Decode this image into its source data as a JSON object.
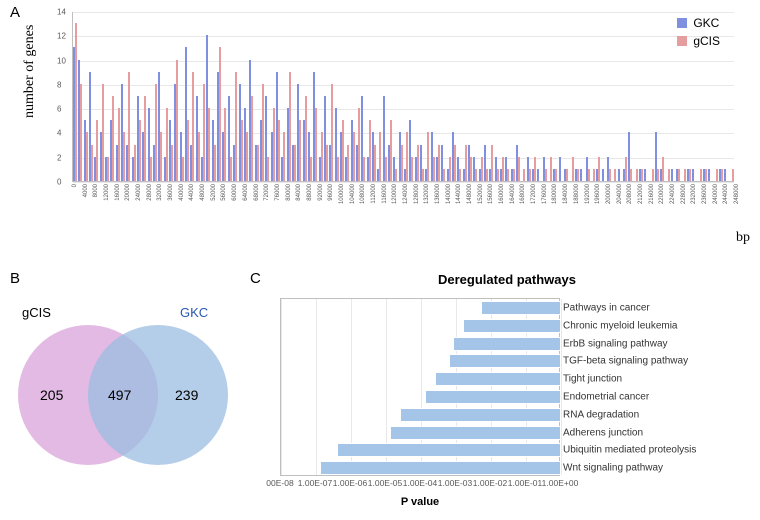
{
  "labels": {
    "A": "A",
    "B": "B",
    "C": "C"
  },
  "panelA": {
    "type": "histogram-paired",
    "ylabel": "number of genes",
    "xlabel": "bp",
    "ylim": [
      0,
      14
    ],
    "ytick_step": 2,
    "xmax": 248000,
    "xtick_step": 4000,
    "series": [
      {
        "name": "GKC",
        "color": "#8090e0"
      },
      {
        "name": "gCIS",
        "color": "#e59da0"
      }
    ],
    "bins": [
      {
        "x": 0,
        "gkc": 11,
        "gcis": 13
      },
      {
        "x": 2000,
        "gkc": 10,
        "gcis": 8
      },
      {
        "x": 4000,
        "gkc": 5,
        "gcis": 4
      },
      {
        "x": 6000,
        "gkc": 9,
        "gcis": 3
      },
      {
        "x": 8000,
        "gkc": 2,
        "gcis": 5
      },
      {
        "x": 10000,
        "gkc": 4,
        "gcis": 8
      },
      {
        "x": 12000,
        "gkc": 2,
        "gcis": 2
      },
      {
        "x": 14000,
        "gkc": 5,
        "gcis": 7
      },
      {
        "x": 16000,
        "gkc": 3,
        "gcis": 6
      },
      {
        "x": 18000,
        "gkc": 8,
        "gcis": 4
      },
      {
        "x": 20000,
        "gkc": 3,
        "gcis": 9
      },
      {
        "x": 22000,
        "gkc": 2,
        "gcis": 3
      },
      {
        "x": 24000,
        "gkc": 7,
        "gcis": 5
      },
      {
        "x": 26000,
        "gkc": 4,
        "gcis": 7
      },
      {
        "x": 28000,
        "gkc": 6,
        "gcis": 2
      },
      {
        "x": 30000,
        "gkc": 3,
        "gcis": 8
      },
      {
        "x": 32000,
        "gkc": 9,
        "gcis": 4
      },
      {
        "x": 34000,
        "gkc": 2,
        "gcis": 6
      },
      {
        "x": 36000,
        "gkc": 5,
        "gcis": 3
      },
      {
        "x": 38000,
        "gkc": 8,
        "gcis": 10
      },
      {
        "x": 40000,
        "gkc": 4,
        "gcis": 2
      },
      {
        "x": 42000,
        "gkc": 11,
        "gcis": 5
      },
      {
        "x": 44000,
        "gkc": 3,
        "gcis": 9
      },
      {
        "x": 46000,
        "gkc": 7,
        "gcis": 4
      },
      {
        "x": 48000,
        "gkc": 2,
        "gcis": 8
      },
      {
        "x": 50000,
        "gkc": 12,
        "gcis": 6
      },
      {
        "x": 52000,
        "gkc": 5,
        "gcis": 3
      },
      {
        "x": 54000,
        "gkc": 9,
        "gcis": 11
      },
      {
        "x": 56000,
        "gkc": 4,
        "gcis": 6
      },
      {
        "x": 58000,
        "gkc": 7,
        "gcis": 2
      },
      {
        "x": 60000,
        "gkc": 3,
        "gcis": 9
      },
      {
        "x": 62000,
        "gkc": 8,
        "gcis": 5
      },
      {
        "x": 64000,
        "gkc": 6,
        "gcis": 4
      },
      {
        "x": 66000,
        "gkc": 10,
        "gcis": 7
      },
      {
        "x": 68000,
        "gkc": 3,
        "gcis": 3
      },
      {
        "x": 70000,
        "gkc": 5,
        "gcis": 8
      },
      {
        "x": 72000,
        "gkc": 7,
        "gcis": 2
      },
      {
        "x": 74000,
        "gkc": 4,
        "gcis": 6
      },
      {
        "x": 76000,
        "gkc": 9,
        "gcis": 5
      },
      {
        "x": 78000,
        "gkc": 2,
        "gcis": 4
      },
      {
        "x": 80000,
        "gkc": 6,
        "gcis": 9
      },
      {
        "x": 82000,
        "gkc": 3,
        "gcis": 3
      },
      {
        "x": 84000,
        "gkc": 8,
        "gcis": 5
      },
      {
        "x": 86000,
        "gkc": 5,
        "gcis": 7
      },
      {
        "x": 88000,
        "gkc": 4,
        "gcis": 2
      },
      {
        "x": 90000,
        "gkc": 9,
        "gcis": 6
      },
      {
        "x": 92000,
        "gkc": 2,
        "gcis": 4
      },
      {
        "x": 94000,
        "gkc": 7,
        "gcis": 3
      },
      {
        "x": 96000,
        "gkc": 3,
        "gcis": 8
      },
      {
        "x": 98000,
        "gkc": 6,
        "gcis": 2
      },
      {
        "x": 100000,
        "gkc": 4,
        "gcis": 5
      },
      {
        "x": 102000,
        "gkc": 2,
        "gcis": 3
      },
      {
        "x": 104000,
        "gkc": 5,
        "gcis": 4
      },
      {
        "x": 106000,
        "gkc": 3,
        "gcis": 6
      },
      {
        "x": 108000,
        "gkc": 7,
        "gcis": 2
      },
      {
        "x": 110000,
        "gkc": 2,
        "gcis": 5
      },
      {
        "x": 112000,
        "gkc": 4,
        "gcis": 3
      },
      {
        "x": 114000,
        "gkc": 1,
        "gcis": 4
      },
      {
        "x": 116000,
        "gkc": 7,
        "gcis": 2
      },
      {
        "x": 118000,
        "gkc": 3,
        "gcis": 5
      },
      {
        "x": 120000,
        "gkc": 2,
        "gcis": 1
      },
      {
        "x": 122000,
        "gkc": 4,
        "gcis": 3
      },
      {
        "x": 124000,
        "gkc": 1,
        "gcis": 4
      },
      {
        "x": 126000,
        "gkc": 5,
        "gcis": 2
      },
      {
        "x": 128000,
        "gkc": 2,
        "gcis": 3
      },
      {
        "x": 130000,
        "gkc": 3,
        "gcis": 1
      },
      {
        "x": 132000,
        "gkc": 1,
        "gcis": 4
      },
      {
        "x": 134000,
        "gkc": 4,
        "gcis": 2
      },
      {
        "x": 136000,
        "gkc": 2,
        "gcis": 3
      },
      {
        "x": 138000,
        "gkc": 3,
        "gcis": 1
      },
      {
        "x": 140000,
        "gkc": 1,
        "gcis": 2
      },
      {
        "x": 142000,
        "gkc": 4,
        "gcis": 3
      },
      {
        "x": 144000,
        "gkc": 2,
        "gcis": 1
      },
      {
        "x": 146000,
        "gkc": 1,
        "gcis": 3
      },
      {
        "x": 148000,
        "gkc": 3,
        "gcis": 2
      },
      {
        "x": 150000,
        "gkc": 2,
        "gcis": 1
      },
      {
        "x": 152000,
        "gkc": 1,
        "gcis": 2
      },
      {
        "x": 154000,
        "gkc": 3,
        "gcis": 1
      },
      {
        "x": 156000,
        "gkc": 1,
        "gcis": 3
      },
      {
        "x": 158000,
        "gkc": 2,
        "gcis": 1
      },
      {
        "x": 160000,
        "gkc": 1,
        "gcis": 2
      },
      {
        "x": 162000,
        "gkc": 2,
        "gcis": 1
      },
      {
        "x": 164000,
        "gkc": 1,
        "gcis": 1
      },
      {
        "x": 166000,
        "gkc": 3,
        "gcis": 2
      },
      {
        "x": 168000,
        "gkc": 0,
        "gcis": 1
      },
      {
        "x": 170000,
        "gkc": 2,
        "gcis": 1
      },
      {
        "x": 172000,
        "gkc": 1,
        "gcis": 2
      },
      {
        "x": 174000,
        "gkc": 1,
        "gcis": 0
      },
      {
        "x": 176000,
        "gkc": 2,
        "gcis": 1
      },
      {
        "x": 178000,
        "gkc": 0,
        "gcis": 2
      },
      {
        "x": 180000,
        "gkc": 1,
        "gcis": 1
      },
      {
        "x": 182000,
        "gkc": 2,
        "gcis": 0
      },
      {
        "x": 184000,
        "gkc": 1,
        "gcis": 1
      },
      {
        "x": 186000,
        "gkc": 0,
        "gcis": 2
      },
      {
        "x": 188000,
        "gkc": 1,
        "gcis": 1
      },
      {
        "x": 190000,
        "gkc": 1,
        "gcis": 0
      },
      {
        "x": 192000,
        "gkc": 2,
        "gcis": 1
      },
      {
        "x": 194000,
        "gkc": 0,
        "gcis": 1
      },
      {
        "x": 196000,
        "gkc": 1,
        "gcis": 2
      },
      {
        "x": 198000,
        "gkc": 1,
        "gcis": 0
      },
      {
        "x": 200000,
        "gkc": 2,
        "gcis": 1
      },
      {
        "x": 202000,
        "gkc": 0,
        "gcis": 1
      },
      {
        "x": 204000,
        "gkc": 1,
        "gcis": 0
      },
      {
        "x": 206000,
        "gkc": 1,
        "gcis": 2
      },
      {
        "x": 208000,
        "gkc": 4,
        "gcis": 1
      },
      {
        "x": 210000,
        "gkc": 0,
        "gcis": 1
      },
      {
        "x": 212000,
        "gkc": 1,
        "gcis": 1
      },
      {
        "x": 214000,
        "gkc": 1,
        "gcis": 0
      },
      {
        "x": 216000,
        "gkc": 0,
        "gcis": 1
      },
      {
        "x": 218000,
        "gkc": 4,
        "gcis": 1
      },
      {
        "x": 220000,
        "gkc": 1,
        "gcis": 2
      },
      {
        "x": 222000,
        "gkc": 0,
        "gcis": 1
      },
      {
        "x": 224000,
        "gkc": 1,
        "gcis": 0
      },
      {
        "x": 226000,
        "gkc": 1,
        "gcis": 1
      },
      {
        "x": 228000,
        "gkc": 0,
        "gcis": 1
      },
      {
        "x": 230000,
        "gkc": 1,
        "gcis": 1
      },
      {
        "x": 232000,
        "gkc": 1,
        "gcis": 0
      },
      {
        "x": 234000,
        "gkc": 0,
        "gcis": 1
      },
      {
        "x": 236000,
        "gkc": 1,
        "gcis": 1
      },
      {
        "x": 238000,
        "gkc": 1,
        "gcis": 0
      },
      {
        "x": 240000,
        "gkc": 0,
        "gcis": 1
      },
      {
        "x": 242000,
        "gkc": 1,
        "gcis": 1
      },
      {
        "x": 244000,
        "gkc": 1,
        "gcis": 0
      },
      {
        "x": 246000,
        "gkc": 0,
        "gcis": 1
      }
    ]
  },
  "panelB": {
    "type": "venn",
    "left": {
      "label": "gCIS",
      "count": 205,
      "color": "#d9a3da"
    },
    "right": {
      "label": "GKC",
      "count": 239,
      "color": "#9bbce0"
    },
    "overlap": 497,
    "label_colors": {
      "gcis": "#000000",
      "gkc": "#2758b3"
    }
  },
  "panelC": {
    "type": "hbar-log",
    "title": "Deregulated pathways",
    "xlabel": "P value",
    "bar_color": "#a5c5e8",
    "xticks": [
      "00E-08",
      "1.00E-07",
      "1.00E-06",
      "1.00E-05",
      "1.00E-04",
      "1.00E-03",
      "1.00E-02",
      "1.00E-01",
      "1.00E+00"
    ],
    "log_min": -8,
    "log_max": 0,
    "items": [
      {
        "label": "Pathways in cancer",
        "logp": -2.3
      },
      {
        "label": "Chronic myeloid leukemia",
        "logp": -2.8
      },
      {
        "label": "ErbB signaling pathway",
        "logp": -3.1
      },
      {
        "label": "TGF-beta signaling pathway",
        "logp": -3.2
      },
      {
        "label": "Tight junction",
        "logp": -3.6
      },
      {
        "label": "Endometrial cancer",
        "logp": -3.9
      },
      {
        "label": "RNA degradation",
        "logp": -4.6
      },
      {
        "label": "Adherens junction",
        "logp": -4.9
      },
      {
        "label": "Ubiquitin mediated proteolysis",
        "logp": -6.4
      },
      {
        "label": "Wnt signaling pathway",
        "logp": -6.9
      }
    ],
    "row_height": 17.8
  }
}
